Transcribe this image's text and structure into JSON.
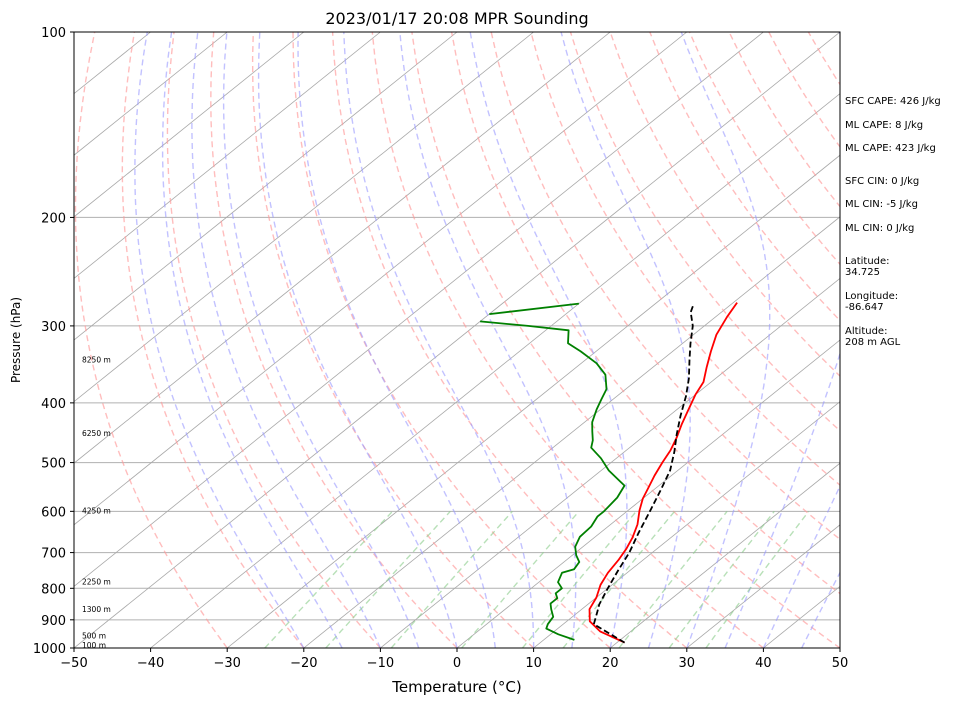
{
  "chart_data": {
    "type": "line",
    "title": "2023/01/17 20:08 MPR Sounding",
    "xlabel": "Temperature (°C)",
    "ylabel": "Pressure (hPa)",
    "xlim": [
      -50,
      50
    ],
    "ylim": [
      1000,
      100
    ],
    "y_scale": "log",
    "skew_t": true,
    "grid": true,
    "x_ticks": [
      "−50",
      "−40",
      "−30",
      "−20",
      "−10",
      "0",
      "10",
      "20",
      "30",
      "40",
      "50"
    ],
    "y_ticks": [
      {
        "p": 100,
        "label": "100"
      },
      {
        "p": 200,
        "label": "200"
      },
      {
        "p": 300,
        "label": "300"
      },
      {
        "p": 400,
        "label": "400"
      },
      {
        "p": 500,
        "label": "500"
      },
      {
        "p": 600,
        "label": "600"
      },
      {
        "p": 700,
        "label": "700"
      },
      {
        "p": 800,
        "label": "800"
      },
      {
        "p": 900,
        "label": "900"
      },
      {
        "p": 1000,
        "label": "1000"
      }
    ],
    "height_labels": [
      {
        "p": 989,
        "label": "100 m"
      },
      {
        "p": 955,
        "label": "500 m"
      },
      {
        "p": 865,
        "label": "1300 m"
      },
      {
        "p": 780,
        "label": "2250 m"
      },
      {
        "p": 598,
        "label": "4250 m"
      },
      {
        "p": 448,
        "label": "6250 m"
      },
      {
        "p": 340,
        "label": "8250 m"
      }
    ],
    "series": [
      {
        "key": "temperature",
        "color": "#ff0000",
        "points": [
          [
            21,
            980
          ],
          [
            16,
            940
          ],
          [
            13,
            905
          ],
          [
            11,
            865
          ],
          [
            10,
            828
          ],
          [
            8.5,
            790
          ],
          [
            7.5,
            755
          ],
          [
            6.8,
            720
          ],
          [
            6.0,
            690
          ],
          [
            5.0,
            662
          ],
          [
            3.5,
            630
          ],
          [
            1.5,
            598
          ],
          [
            0,
            572
          ],
          [
            -1,
            550
          ],
          [
            -2.2,
            525
          ],
          [
            -3.3,
            500
          ],
          [
            -4.2,
            478
          ],
          [
            -5.5,
            455
          ],
          [
            -7,
            433
          ],
          [
            -8.5,
            410
          ],
          [
            -10,
            388
          ],
          [
            -11,
            370
          ],
          [
            -13,
            350
          ],
          [
            -15,
            330
          ],
          [
            -17,
            310
          ],
          [
            -18.5,
            290
          ],
          [
            -19.5,
            275
          ]
        ]
      },
      {
        "key": "dewpoint",
        "color": "#008000",
        "points": [
          [
            14,
            970
          ],
          [
            11,
            950
          ],
          [
            8.5,
            930
          ],
          [
            8,
            915
          ],
          [
            7.5,
            890
          ],
          [
            6,
            865
          ],
          [
            5,
            847
          ],
          [
            5,
            830
          ],
          [
            4,
            815
          ],
          [
            4,
            800
          ],
          [
            2.5,
            782
          ],
          [
            1.5,
            755
          ],
          [
            2.5,
            745
          ],
          [
            2,
            725
          ],
          [
            0.5,
            707
          ],
          [
            -1,
            685
          ],
          [
            -2,
            660
          ],
          [
            -2.2,
            635
          ],
          [
            -3,
            612
          ],
          [
            -3,
            600
          ],
          [
            -3.5,
            570
          ],
          [
            -4.5,
            545
          ],
          [
            -9,
            515
          ],
          [
            -12,
            492
          ],
          [
            -15,
            473
          ],
          [
            -16,
            460
          ],
          [
            -17.5,
            445
          ],
          [
            -19,
            430
          ],
          [
            -20.5,
            410
          ],
          [
            -21.5,
            395
          ],
          [
            -22.5,
            380
          ],
          [
            -25,
            360
          ],
          [
            -28,
            345
          ],
          [
            -32,
            330
          ],
          [
            -35,
            320
          ],
          [
            -37,
            305
          ],
          [
            -43,
            300
          ],
          [
            -50,
            295
          ]
        ]
      },
      {
        "key": "dewpoint-upper",
        "color": "#008000",
        "points": [
          [
            -50,
            287
          ],
          [
            -40,
            276
          ]
        ]
      },
      {
        "key": "parcel",
        "color": "#000000",
        "dashed": true,
        "points": [
          [
            21,
            980
          ],
          [
            14,
            915
          ],
          [
            12.5,
            875
          ],
          [
            11.5,
            850
          ],
          [
            10,
            800
          ],
          [
            8.5,
            750
          ],
          [
            7,
            700
          ],
          [
            5,
            650
          ],
          [
            3,
            600
          ],
          [
            1,
            555
          ],
          [
            -1,
            515
          ],
          [
            -3.5,
            480
          ],
          [
            -6,
            450
          ],
          [
            -8.5,
            420
          ],
          [
            -11,
            390
          ],
          [
            -13.5,
            365
          ],
          [
            -16.5,
            340
          ],
          [
            -19,
            320
          ],
          [
            -21.5,
            300
          ],
          [
            -24,
            285
          ],
          [
            -25,
            276
          ]
        ]
      }
    ]
  },
  "side_info": [
    {
      "label": "SFC CAPE: 426 J/kg",
      "y": 101
    },
    {
      "label": "ML CAPE: 8 J/kg",
      "y": 125
    },
    {
      "label": "ML CAPE: 423 J/kg",
      "y": 148
    },
    {
      "label": "SFC CIN: 0 J/kg",
      "y": 181
    },
    {
      "label": "ML CIN: -5 J/kg",
      "y": 204
    },
    {
      "label": "ML CIN: 0 J/kg",
      "y": 228
    },
    {
      "label": "Latitude:\n34.725",
      "y": 261
    },
    {
      "label": "Longitude:\n-86.647",
      "y": 296
    },
    {
      "label": "Altitude:\n208 m AGL",
      "y": 331
    }
  ]
}
